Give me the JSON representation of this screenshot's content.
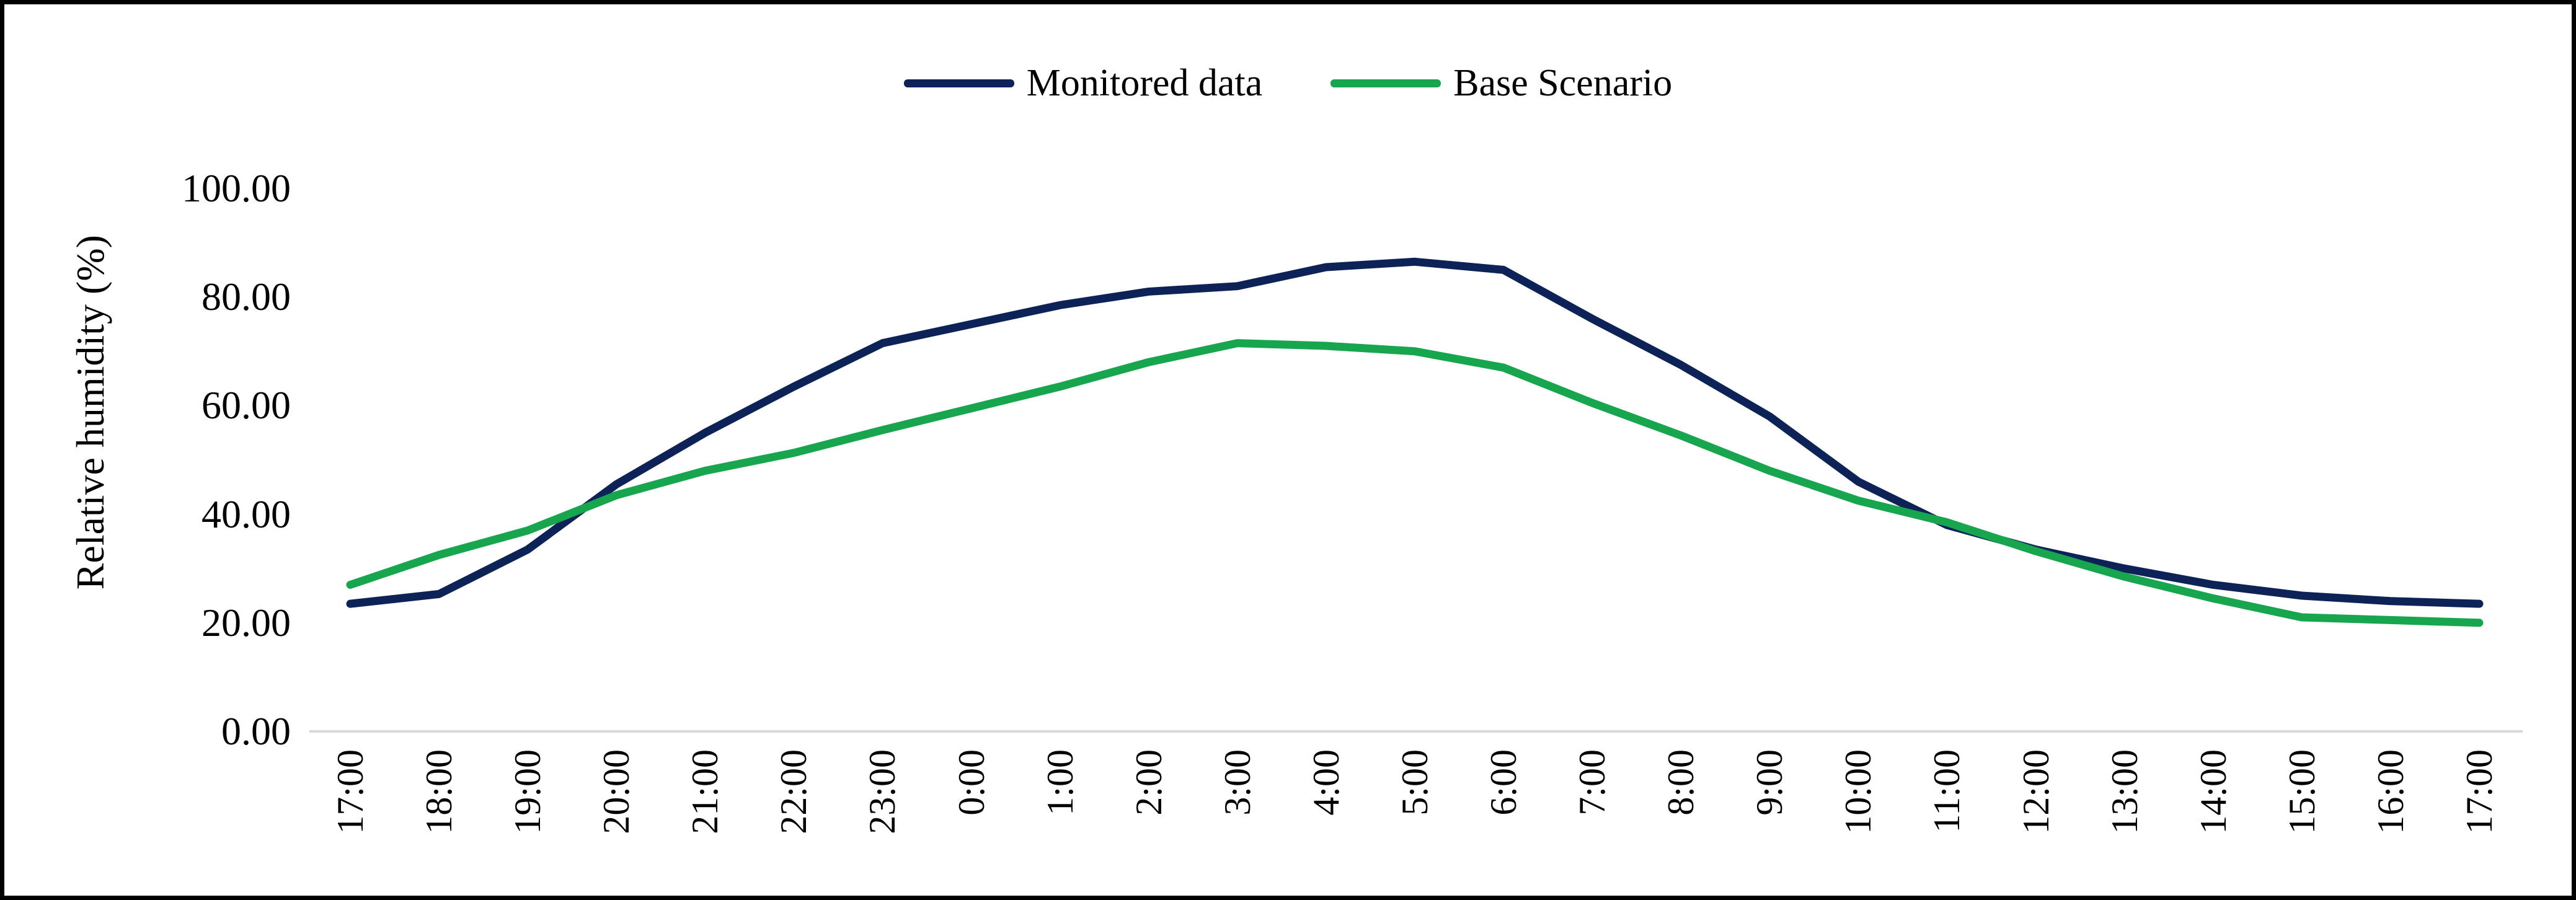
{
  "page": {
    "background": "#ffffff",
    "border_color": "#000000"
  },
  "legend": [
    {
      "label": "Monitored data",
      "color": "#0d2357"
    },
    {
      "label": "Base Scenario",
      "color": "#17a54e"
    }
  ],
  "y_axis": {
    "title": "Relative humidity (%)",
    "ticks": [
      "100.00",
      "80.00",
      "60.00",
      "40.00",
      "20.00",
      "0.00"
    ],
    "axis_line_color": "#d9d9d9"
  },
  "x_axis": {
    "ticks": [
      "17:00",
      "18:00",
      "19:00",
      "20:00",
      "21:00",
      "22:00",
      "23:00",
      "0:00",
      "1:00",
      "2:00",
      "3:00",
      "4:00",
      "5:00",
      "6:00",
      "7:00",
      "8:00",
      "9:00",
      "10:00",
      "11:00",
      "12:00",
      "13:00",
      "14:00",
      "15:00",
      "16:00",
      "17:00"
    ]
  },
  "chart_data": {
    "type": "line",
    "title": "",
    "xlabel": "",
    "ylabel": "Relative humidity (%)",
    "ylim": [
      0,
      100
    ],
    "grid": false,
    "legend_position": "top",
    "categories": [
      "17:00",
      "18:00",
      "19:00",
      "20:00",
      "21:00",
      "22:00",
      "23:00",
      "0:00",
      "1:00",
      "2:00",
      "3:00",
      "4:00",
      "5:00",
      "6:00",
      "7:00",
      "8:00",
      "9:00",
      "10:00",
      "11:00",
      "12:00",
      "13:00",
      "14:00",
      "15:00",
      "16:00",
      "17:00"
    ],
    "series": [
      {
        "name": "Monitored data",
        "color": "#0d2357",
        "values": [
          23.5,
          25.3,
          33.5,
          45.5,
          55.0,
          63.5,
          71.5,
          75.0,
          78.5,
          81.0,
          82.0,
          85.5,
          86.5,
          85.0,
          76.0,
          67.5,
          58.0,
          46.0,
          38.0,
          33.5,
          30.0,
          27.0,
          25.0,
          24.0,
          23.5
        ]
      },
      {
        "name": "Base Scenario",
        "color": "#17a54e",
        "values": [
          27.0,
          32.5,
          37.0,
          43.5,
          48.0,
          51.3,
          55.5,
          59.5,
          63.5,
          68.0,
          71.5,
          71.0,
          70.0,
          67.0,
          60.5,
          54.5,
          48.0,
          42.5,
          38.5,
          33.2,
          28.5,
          24.5,
          21.0,
          20.5,
          20.0
        ]
      }
    ]
  }
}
